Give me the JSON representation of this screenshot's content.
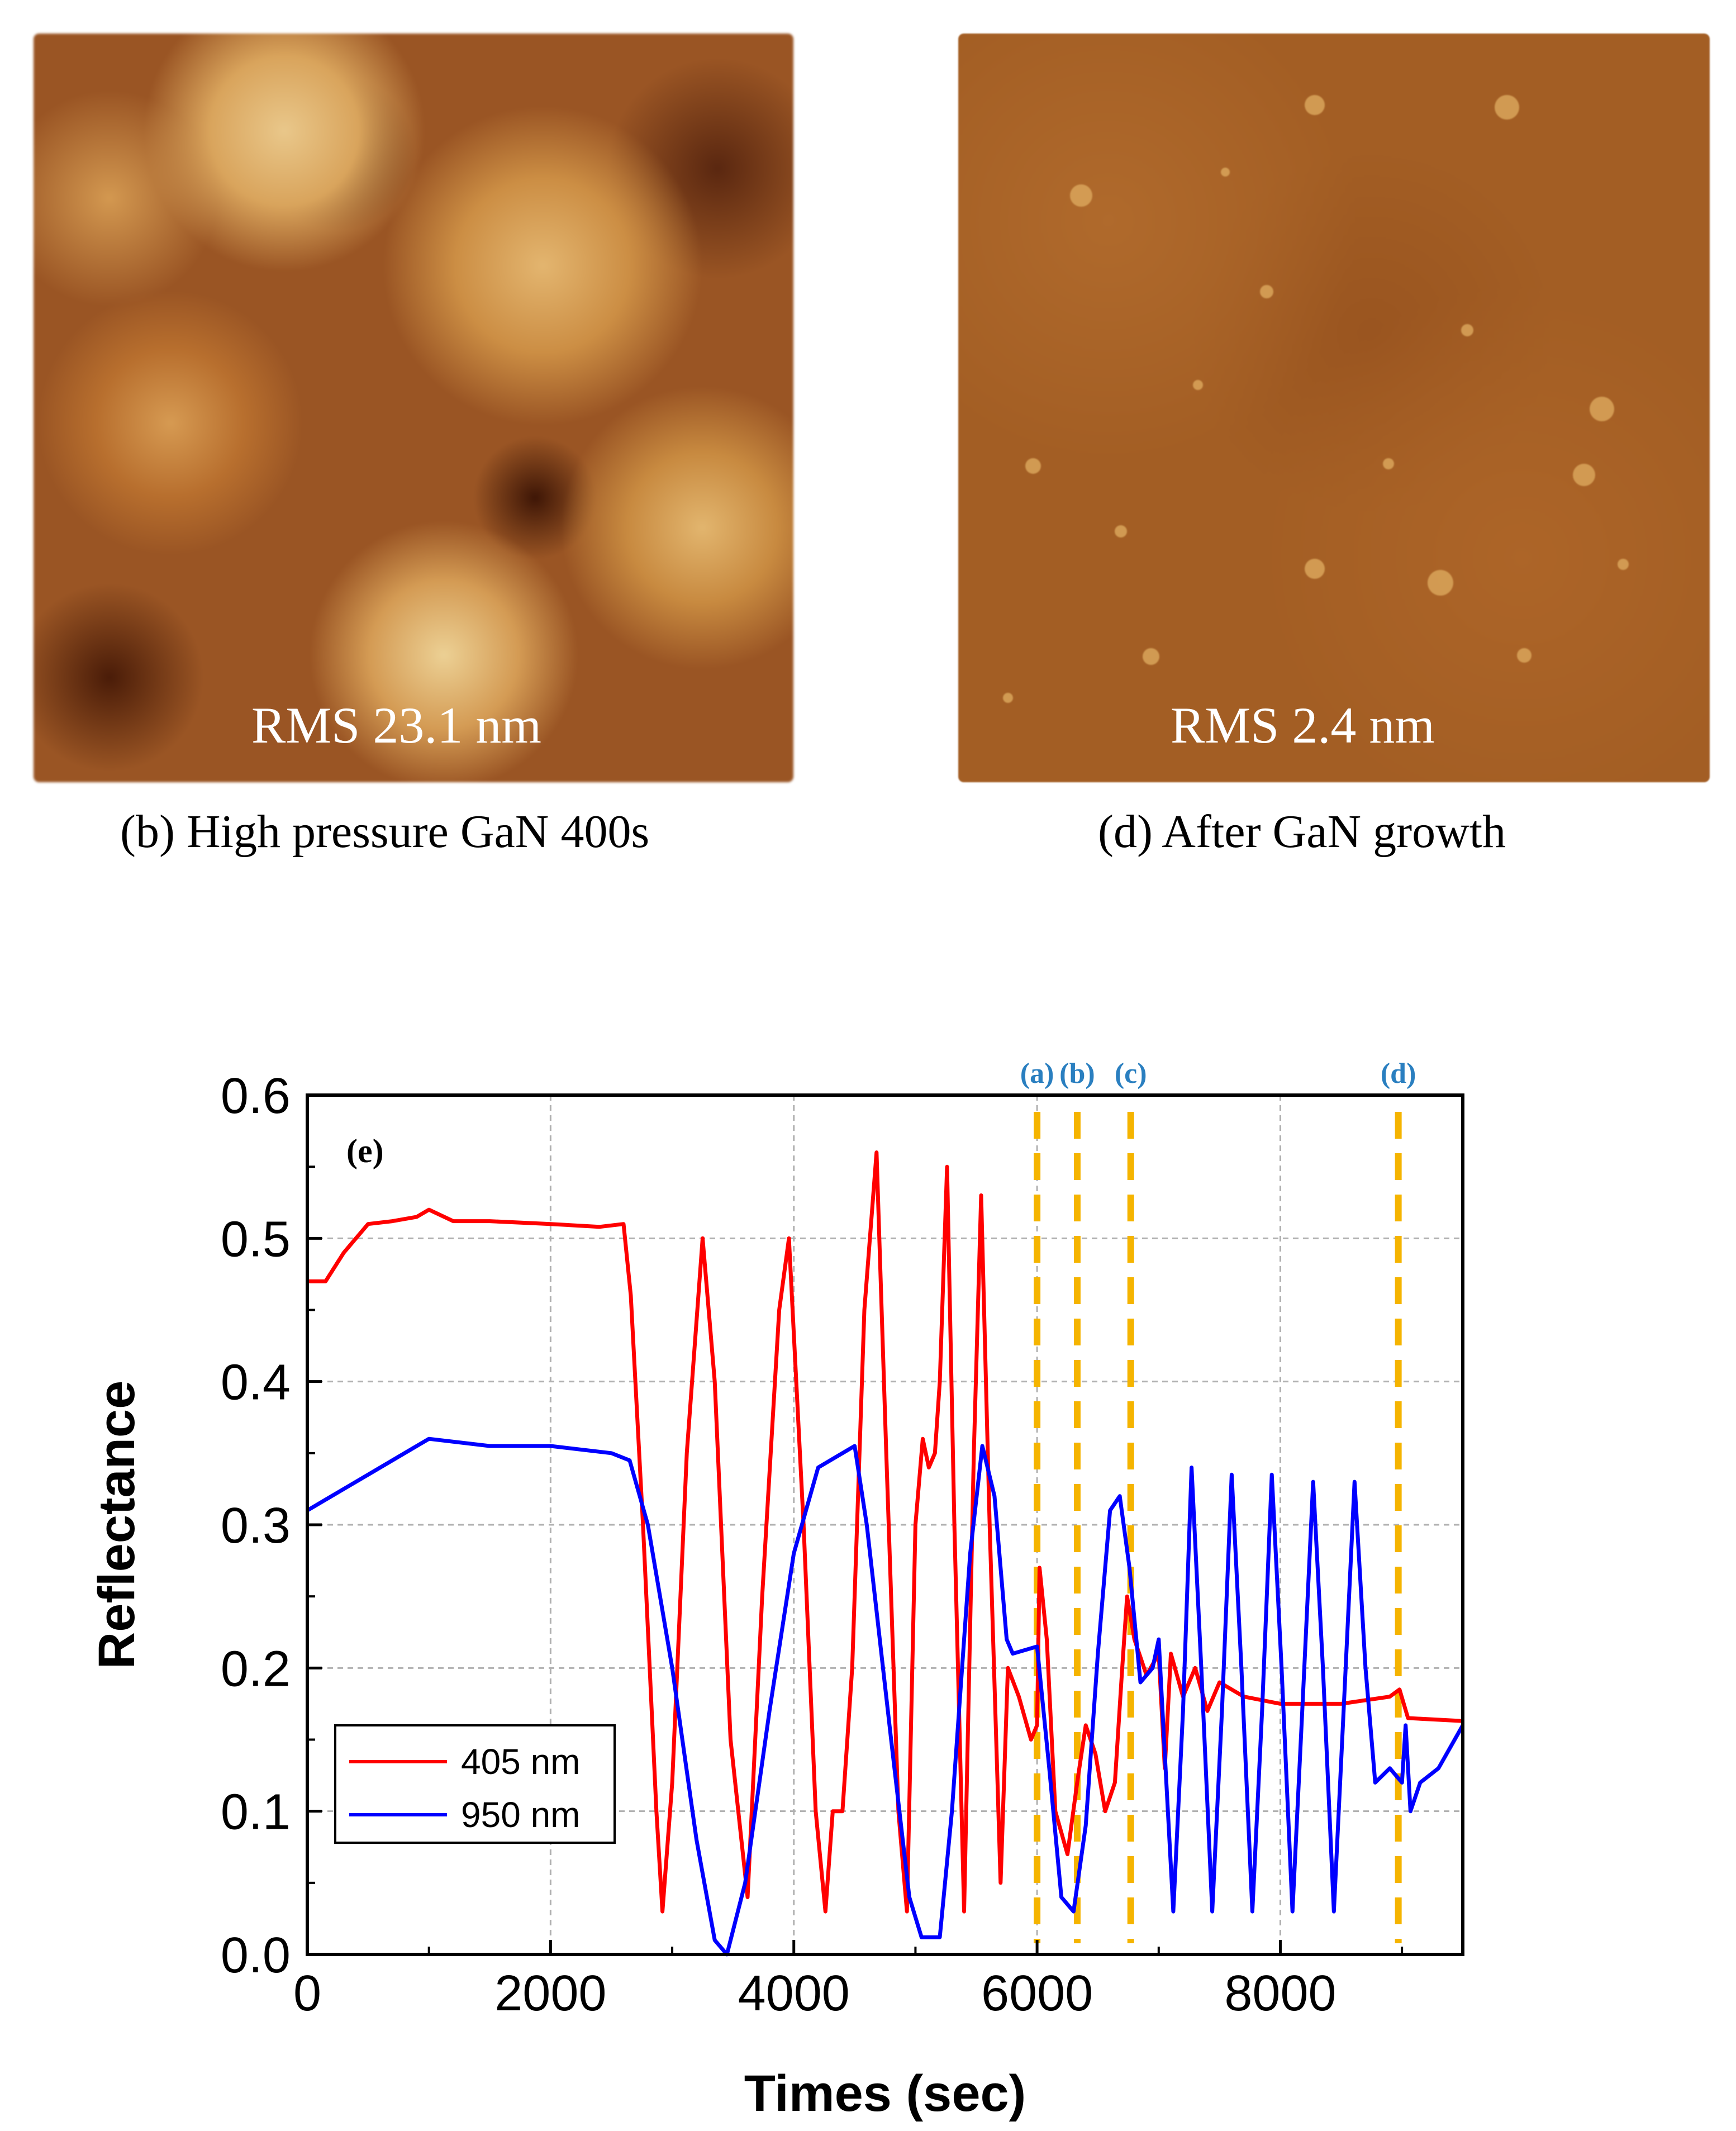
{
  "afm_images": [
    {
      "rms": "RMS 23.1 nm",
      "caption": "(b) High pressure GaN 400s"
    },
    {
      "rms": "RMS 2.4 nm",
      "caption": "(d) After GaN growth"
    }
  ],
  "chart_data": {
    "type": "line",
    "panel_label": "(e)",
    "xlabel": "Times (sec)",
    "ylabel": "Reflectance",
    "xlim": [
      0,
      9500
    ],
    "ylim": [
      0,
      0.6
    ],
    "xticks": [
      "0",
      "2000",
      "4000",
      "6000",
      "8000"
    ],
    "xtick_values": [
      0,
      2000,
      4000,
      6000,
      8000
    ],
    "yticks": [
      "0.0",
      "0.1",
      "0.2",
      "0.3",
      "0.4",
      "0.5",
      "0.6"
    ],
    "ytick_values": [
      0,
      0.1,
      0.2,
      0.3,
      0.4,
      0.5,
      0.6
    ],
    "grid": true,
    "legend_position": "bottom-left",
    "markers": [
      {
        "label": "(a)",
        "x": 6000
      },
      {
        "label": "(b)",
        "x": 6330
      },
      {
        "label": "(c)",
        "x": 6770
      },
      {
        "label": "(d)",
        "x": 8970
      }
    ],
    "marker_color": "#f5b400",
    "series": [
      {
        "name": "405 nm",
        "color": "#ff0000",
        "points": [
          [
            0,
            0.47
          ],
          [
            150,
            0.47
          ],
          [
            300,
            0.49
          ],
          [
            500,
            0.51
          ],
          [
            700,
            0.512
          ],
          [
            900,
            0.515
          ],
          [
            1000,
            0.52
          ],
          [
            1200,
            0.512
          ],
          [
            1500,
            0.512
          ],
          [
            2000,
            0.51
          ],
          [
            2400,
            0.508
          ],
          [
            2600,
            0.51
          ],
          [
            2660,
            0.46
          ],
          [
            2760,
            0.3
          ],
          [
            2870,
            0.1
          ],
          [
            2920,
            0.03
          ],
          [
            3000,
            0.12
          ],
          [
            3120,
            0.35
          ],
          [
            3250,
            0.5
          ],
          [
            3350,
            0.4
          ],
          [
            3480,
            0.15
          ],
          [
            3620,
            0.04
          ],
          [
            3740,
            0.25
          ],
          [
            3880,
            0.45
          ],
          [
            3960,
            0.5
          ],
          [
            4080,
            0.3
          ],
          [
            4180,
            0.1
          ],
          [
            4260,
            0.03
          ],
          [
            4320,
            0.1
          ],
          [
            4400,
            0.1
          ],
          [
            4480,
            0.2
          ],
          [
            4580,
            0.45
          ],
          [
            4680,
            0.56
          ],
          [
            4760,
            0.35
          ],
          [
            4860,
            0.1
          ],
          [
            4930,
            0.03
          ],
          [
            5000,
            0.3
          ],
          [
            5060,
            0.36
          ],
          [
            5110,
            0.34
          ],
          [
            5160,
            0.35
          ],
          [
            5200,
            0.4
          ],
          [
            5260,
            0.55
          ],
          [
            5320,
            0.3
          ],
          [
            5400,
            0.03
          ],
          [
            5480,
            0.35
          ],
          [
            5540,
            0.53
          ],
          [
            5610,
            0.3
          ],
          [
            5700,
            0.05
          ],
          [
            5760,
            0.2
          ],
          [
            5850,
            0.18
          ],
          [
            5950,
            0.15
          ],
          [
            6000,
            0.16
          ],
          [
            6020,
            0.27
          ],
          [
            6080,
            0.22
          ],
          [
            6150,
            0.1
          ],
          [
            6250,
            0.07
          ],
          [
            6330,
            0.12
          ],
          [
            6400,
            0.16
          ],
          [
            6480,
            0.14
          ],
          [
            6560,
            0.1
          ],
          [
            6640,
            0.12
          ],
          [
            6700,
            0.2
          ],
          [
            6740,
            0.25
          ],
          [
            6800,
            0.22
          ],
          [
            6900,
            0.195
          ],
          [
            7000,
            0.21
          ],
          [
            7050,
            0.13
          ],
          [
            7100,
            0.21
          ],
          [
            7200,
            0.18
          ],
          [
            7300,
            0.2
          ],
          [
            7400,
            0.17
          ],
          [
            7500,
            0.19
          ],
          [
            7700,
            0.18
          ],
          [
            8000,
            0.175
          ],
          [
            8500,
            0.175
          ],
          [
            8900,
            0.18
          ],
          [
            8980,
            0.185
          ],
          [
            9050,
            0.165
          ],
          [
            9500,
            0.163
          ]
        ]
      },
      {
        "name": "950 nm",
        "color": "#0000ff",
        "points": [
          [
            0,
            0.31
          ],
          [
            200,
            0.32
          ],
          [
            500,
            0.335
          ],
          [
            800,
            0.35
          ],
          [
            1000,
            0.36
          ],
          [
            1500,
            0.355
          ],
          [
            2000,
            0.355
          ],
          [
            2500,
            0.35
          ],
          [
            2650,
            0.345
          ],
          [
            2800,
            0.3
          ],
          [
            3000,
            0.2
          ],
          [
            3200,
            0.08
          ],
          [
            3350,
            0.01
          ],
          [
            3450,
            0.0
          ],
          [
            3600,
            0.05
          ],
          [
            3800,
            0.17
          ],
          [
            4000,
            0.28
          ],
          [
            4200,
            0.34
          ],
          [
            4400,
            0.35
          ],
          [
            4500,
            0.355
          ],
          [
            4600,
            0.3
          ],
          [
            4800,
            0.15
          ],
          [
            4950,
            0.04
          ],
          [
            5050,
            0.012
          ],
          [
            5200,
            0.012
          ],
          [
            5300,
            0.1
          ],
          [
            5450,
            0.28
          ],
          [
            5550,
            0.355
          ],
          [
            5650,
            0.32
          ],
          [
            5750,
            0.22
          ],
          [
            5800,
            0.21
          ],
          [
            6000,
            0.215
          ],
          [
            6100,
            0.13
          ],
          [
            6200,
            0.04
          ],
          [
            6300,
            0.03
          ],
          [
            6400,
            0.09
          ],
          [
            6500,
            0.21
          ],
          [
            6600,
            0.31
          ],
          [
            6680,
            0.32
          ],
          [
            6760,
            0.27
          ],
          [
            6850,
            0.19
          ],
          [
            6950,
            0.2
          ],
          [
            7000,
            0.22
          ],
          [
            7050,
            0.14
          ],
          [
            7120,
            0.03
          ],
          [
            7200,
            0.17
          ],
          [
            7270,
            0.34
          ],
          [
            7350,
            0.2
          ],
          [
            7440,
            0.03
          ],
          [
            7520,
            0.17
          ],
          [
            7600,
            0.335
          ],
          [
            7680,
            0.2
          ],
          [
            7770,
            0.03
          ],
          [
            7850,
            0.17
          ],
          [
            7930,
            0.335
          ],
          [
            8010,
            0.2
          ],
          [
            8100,
            0.03
          ],
          [
            8180,
            0.17
          ],
          [
            8270,
            0.33
          ],
          [
            8350,
            0.2
          ],
          [
            8440,
            0.03
          ],
          [
            8520,
            0.17
          ],
          [
            8610,
            0.33
          ],
          [
            8700,
            0.2
          ],
          [
            8780,
            0.12
          ],
          [
            8900,
            0.13
          ],
          [
            9000,
            0.12
          ],
          [
            9030,
            0.16
          ],
          [
            9070,
            0.1
          ],
          [
            9150,
            0.12
          ],
          [
            9300,
            0.13
          ],
          [
            9500,
            0.16
          ]
        ]
      }
    ]
  }
}
